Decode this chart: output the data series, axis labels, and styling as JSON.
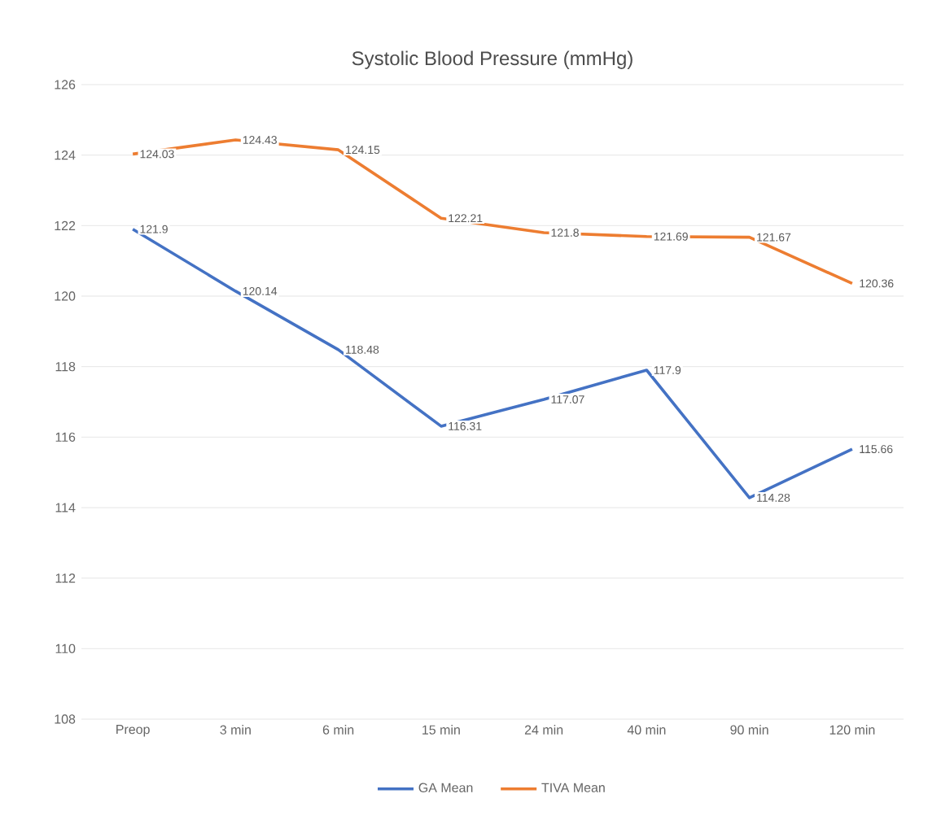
{
  "chart_data": {
    "type": "line",
    "title": "Systolic Blood Pressure (mmHg)",
    "categories": [
      "Preop",
      "3 min",
      "6 min",
      "15 min",
      "24 min",
      "40 min",
      "90 min",
      "120 min"
    ],
    "series": [
      {
        "name": "GA Mean",
        "color": "#4472c4",
        "values": [
          121.9,
          120.14,
          118.48,
          116.31,
          117.07,
          117.9,
          114.28,
          115.66
        ]
      },
      {
        "name": "TIVA Mean",
        "color": "#ed7d31",
        "values": [
          124.03,
          124.43,
          124.15,
          122.21,
          121.8,
          121.69,
          121.67,
          120.36
        ]
      }
    ],
    "ylim": [
      108,
      126
    ],
    "yticks": [
      108,
      110,
      112,
      114,
      116,
      118,
      120,
      122,
      124,
      126
    ],
    "grid": "y",
    "legend": "bottom",
    "data_labels": true,
    "marker": "none",
    "line_style": "solid"
  }
}
